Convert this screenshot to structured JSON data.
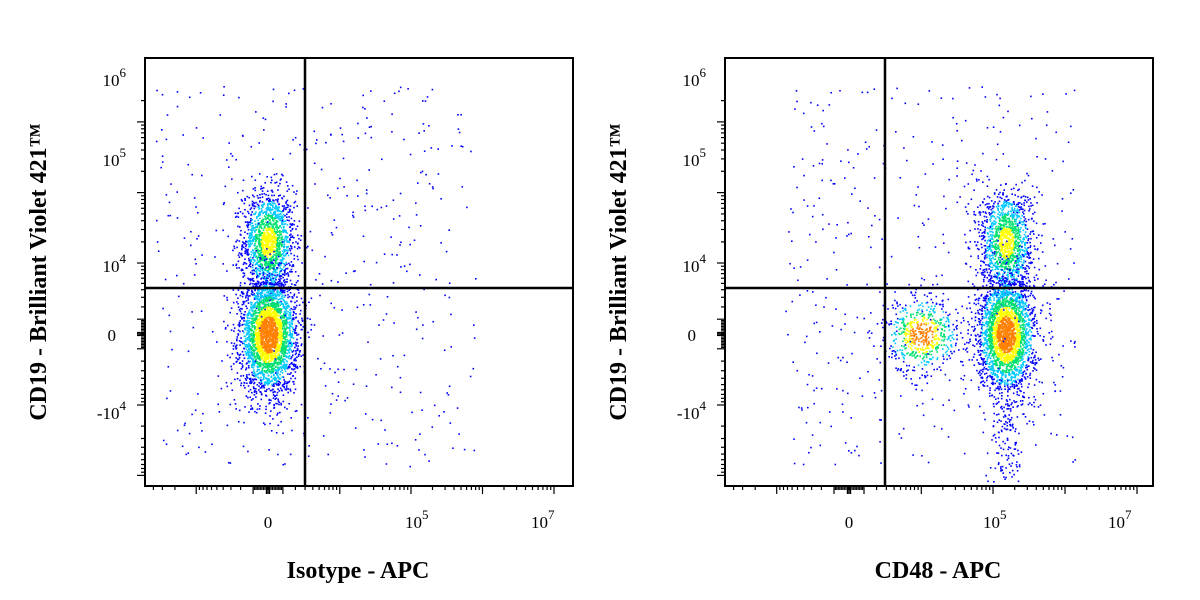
{
  "chart_data": [
    {
      "type": "scatter",
      "subtype": "flow-cytometry-density-dot-plot",
      "xlabel": "Isotype - APC",
      "ylabel": "CD19 - Brilliant Violet 421™",
      "x_ticks": [
        {
          "base": "0",
          "exp": "",
          "value": 0
        },
        {
          "base": "10",
          "exp": "5",
          "value": 100000
        },
        {
          "base": "10",
          "exp": "7",
          "value": 10000000
        }
      ],
      "y_ticks": [
        {
          "base": "10",
          "exp": "6",
          "value": 1000000
        },
        {
          "base": "10",
          "exp": "5",
          "value": 100000
        },
        {
          "base": "10",
          "exp": "4",
          "value": 10000
        },
        {
          "base": "0",
          "exp": "",
          "value": 0
        },
        {
          "base": "-10",
          "exp": "4",
          "value": -10000
        }
      ],
      "scale": "biexponential",
      "xlim": [
        -40000,
        20000000
      ],
      "ylim": [
        -100000,
        2000000
      ],
      "gate": {
        "x": 900,
        "y": 3000
      },
      "populations": [
        {
          "name": "",
          "x_center": 0,
          "y_center": 20000,
          "count": 1500
        },
        {
          "name": "",
          "x_center": 0,
          "y_center": 0,
          "count": 3000
        }
      ],
      "colormap": [
        "#0000ff",
        "#00c8ff",
        "#00e070",
        "#ffff00",
        "#ff8000",
        "#ff0000"
      ]
    },
    {
      "type": "scatter",
      "subtype": "flow-cytometry-density-dot-plot",
      "xlabel": "CD48 - APC",
      "ylabel": "CD19 - Brilliant Violet 421™",
      "x_ticks": [
        {
          "base": "0",
          "exp": "",
          "value": 0
        },
        {
          "base": "10",
          "exp": "5",
          "value": 100000
        },
        {
          "base": "10",
          "exp": "7",
          "value": 10000000
        }
      ],
      "y_ticks": [
        {
          "base": "10",
          "exp": "6",
          "value": 1000000
        },
        {
          "base": "10",
          "exp": "5",
          "value": 100000
        },
        {
          "base": "10",
          "exp": "4",
          "value": 10000
        },
        {
          "base": "0",
          "exp": "",
          "value": 0
        },
        {
          "base": "-10",
          "exp": "4",
          "value": -10000
        }
      ],
      "scale": "biexponential",
      "xlim": [
        -40000,
        20000000
      ],
      "ylim": [
        -100000,
        2000000
      ],
      "gate": {
        "x": 1000,
        "y": 3000
      },
      "populations": [
        {
          "name": "",
          "x_center": 150000,
          "y_center": 20000,
          "count": 1300
        },
        {
          "name": "",
          "x_center": 150000,
          "y_center": 0,
          "count": 2600
        },
        {
          "name": "",
          "x_center": 10000,
          "y_center": 0,
          "count": 600
        }
      ],
      "colormap": [
        "#0000ff",
        "#00c8ff",
        "#00e070",
        "#ffff00",
        "#ff8000",
        "#ff0000"
      ]
    }
  ]
}
